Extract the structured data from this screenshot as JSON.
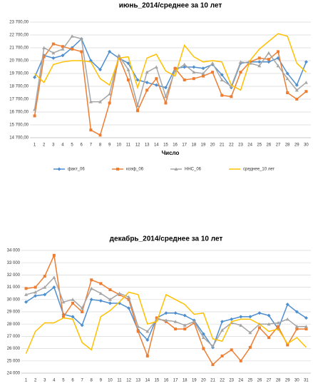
{
  "chart_data": [
    {
      "type": "line",
      "title": "июнь_2014/среднее за 10 лет",
      "x_label": "Число",
      "categories": [
        "1",
        "2",
        "3",
        "4",
        "5",
        "6",
        "7",
        "8",
        "9",
        "10",
        "11",
        "12",
        "13",
        "14",
        "15",
        "16",
        "17",
        "18",
        "19",
        "20",
        "21",
        "22",
        "23",
        "24",
        "25",
        "26",
        "27",
        "28",
        "29",
        "30"
      ],
      "ylim": [
        14700,
        23700
      ],
      "yticks": [
        {
          "value": 14700,
          "label": "14 700,00"
        },
        {
          "value": 15700,
          "label": "15 700,00"
        },
        {
          "value": 16700,
          "label": "16 700,00"
        },
        {
          "value": 17700,
          "label": "17 700,00"
        },
        {
          "value": 18700,
          "label": "18 700,00"
        },
        {
          "value": 19700,
          "label": "19 700,00"
        },
        {
          "value": 20700,
          "label": "20 700,00"
        },
        {
          "value": 21700,
          "label": "21 700,00"
        },
        {
          "value": 22700,
          "label": "22 700,00"
        },
        {
          "value": 23700,
          "label": "23 700,00"
        }
      ],
      "grid": true,
      "legend": "bottom",
      "series": [
        {
          "name": "факт_06",
          "color": "#4f8fd0",
          "marker": "diamond",
          "values": [
            19400,
            21100,
            20900,
            21100,
            21700,
            22400,
            20700,
            20000,
            21400,
            20900,
            20500,
            19200,
            19000,
            18800,
            18600,
            20100,
            20200,
            20200,
            20100,
            20400,
            19600,
            18600,
            20500,
            20600,
            20600,
            20600,
            20900,
            19700,
            18800,
            20600
          ]
        },
        {
          "name": "коэф_06",
          "color": "#ee7d31",
          "marker": "square",
          "values": [
            16400,
            21000,
            22000,
            21800,
            21600,
            21400,
            15300,
            14900,
            17400,
            21000,
            19200,
            16800,
            18400,
            19300,
            17400,
            20100,
            19200,
            19300,
            19500,
            19800,
            18000,
            17900,
            19800,
            20600,
            20900,
            20800,
            21400,
            18200,
            17700,
            18300
          ]
        },
        {
          "name": "ННС_06",
          "color": "#a5a5a5",
          "marker": "triangle",
          "values": [
            16900,
            21700,
            21300,
            21600,
            22600,
            22400,
            17500,
            17500,
            18100,
            21100,
            20000,
            17200,
            19800,
            20200,
            17900,
            19900,
            20400,
            19800,
            19700,
            20500,
            19200,
            18700,
            20600,
            20500,
            20300,
            21300,
            20300,
            19300,
            18400,
            19000
          ]
        },
        {
          "name": "среднее_10 лет",
          "color": "#ffc000",
          "marker": "none",
          "values": [
            19700,
            19000,
            20400,
            20600,
            20700,
            20700,
            20600,
            19300,
            18800,
            20900,
            21000,
            18600,
            20900,
            21200,
            19900,
            19500,
            21900,
            21000,
            20600,
            20700,
            20600,
            18800,
            18400,
            20700,
            21600,
            22200,
            22800,
            22600,
            20500,
            19800
          ]
        }
      ]
    },
    {
      "type": "line",
      "title": "декабрь_2014/среднее за 10 лет",
      "categories": [
        "1",
        "2",
        "3",
        "4",
        "5",
        "6",
        "7",
        "8",
        "9",
        "10",
        "11",
        "12",
        "13",
        "14",
        "15",
        "16",
        "17",
        "18",
        "19",
        "20",
        "21",
        "22",
        "23",
        "24",
        "25",
        "26",
        "27",
        "28",
        "29",
        "30",
        "31"
      ],
      "ylim": [
        24000,
        34000
      ],
      "yticks": [
        {
          "value": 24000,
          "label": "24 000"
        },
        {
          "value": 25000,
          "label": "25 000"
        },
        {
          "value": 26000,
          "label": "26 000"
        },
        {
          "value": 27000,
          "label": "27 000"
        },
        {
          "value": 28000,
          "label": "28 000"
        },
        {
          "value": 29000,
          "label": "29 000"
        },
        {
          "value": 30000,
          "label": "30 000"
        },
        {
          "value": 31000,
          "label": "31 000"
        },
        {
          "value": 32000,
          "label": "32 000"
        },
        {
          "value": 33000,
          "label": "33 000"
        },
        {
          "value": 34000,
          "label": "34 000"
        }
      ],
      "grid": true,
      "series": [
        {
          "color": "#4f8fd0",
          "marker": "diamond",
          "values": [
            29800,
            30300,
            30400,
            31000,
            28800,
            28600,
            27900,
            30000,
            29900,
            29700,
            29700,
            29300,
            27500,
            26700,
            28500,
            28900,
            28900,
            28700,
            28300,
            27200,
            26100,
            28200,
            28400,
            28600,
            28600,
            28900,
            28700,
            27600,
            29600,
            29000,
            28500
          ]
        },
        {
          "color": "#ee7d31",
          "marker": "square",
          "values": [
            30900,
            31000,
            31900,
            33600,
            28600,
            29700,
            29000,
            31600,
            31300,
            30800,
            30400,
            30000,
            27400,
            25400,
            28500,
            28200,
            27600,
            27600,
            28100,
            26000,
            24700,
            25400,
            25900,
            25000,
            26100,
            27700,
            26900,
            27800,
            26300,
            27600,
            27600
          ]
        },
        {
          "color": "#a5a5a5",
          "marker": "triangle",
          "values": [
            30400,
            30600,
            31000,
            31800,
            29800,
            30000,
            29300,
            30900,
            30500,
            30000,
            30500,
            30200,
            27800,
            27400,
            28400,
            28300,
            28200,
            27900,
            28200,
            26900,
            26200,
            27500,
            28100,
            27900,
            27300,
            28000,
            28000,
            28100,
            28400,
            27800,
            27800
          ]
        },
        {
          "color": "#ffc000",
          "marker": "none",
          "values": [
            25600,
            27400,
            28100,
            28100,
            28500,
            28400,
            26500,
            25900,
            28600,
            29100,
            29800,
            30600,
            30400,
            28000,
            28200,
            30400,
            30000,
            29600,
            28800,
            28900,
            26800,
            26600,
            28200,
            28400,
            28400,
            28000,
            27400,
            27600,
            26400,
            26900,
            26100
          ]
        }
      ]
    }
  ]
}
